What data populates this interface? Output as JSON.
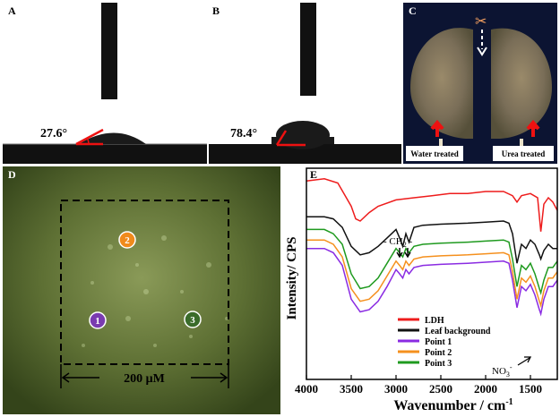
{
  "panels": {
    "a": {
      "label": "A",
      "angle": "27.6°"
    },
    "b": {
      "label": "B",
      "angle": "78.4°"
    },
    "c": {
      "label": "C",
      "left_caption": "Water treated",
      "right_caption": "Urea treated"
    },
    "d": {
      "label": "D",
      "points": [
        "1",
        "2",
        "3"
      ],
      "scale": "200 μM"
    },
    "e": {
      "label": "E",
      "annotation_ch2": "- CH",
      "annotation_ch2_sub": "2",
      "annotation_ch2_tail": " -",
      "annotation_no3": "NO",
      "annotation_no3_sub": "3",
      "annotation_no3_sup": "-"
    }
  },
  "colors": {
    "ldh": "#ee1c1c",
    "leaf": "#111111",
    "point1": "#8a2be2",
    "point2": "#f5901e",
    "point3": "#1f9a1f",
    "point1_marker": "#7a3bb0",
    "point2_marker": "#f08a1c",
    "point3_marker": "#3a6b2a"
  },
  "chart_data": {
    "type": "line",
    "xlabel": "Wavenumber / cm",
    "xlabel_sup": "-1",
    "ylabel": "Intensity/ CPS",
    "xlim": [
      4000,
      1200
    ],
    "x_ticks": [
      4000,
      3500,
      3000,
      2500,
      2000,
      1500
    ],
    "y_ticks": [],
    "legend_position": "bottom-right",
    "series": [
      {
        "name": "LDH",
        "color": "#ee1c1c",
        "x": [
          4000,
          3800,
          3650,
          3500,
          3450,
          3400,
          3300,
          3200,
          3000,
          2800,
          2600,
          2400,
          2200,
          2000,
          1800,
          1700,
          1650,
          1600,
          1500,
          1420,
          1384,
          1350,
          1300,
          1250,
          1200
        ],
        "y": [
          0.94,
          0.95,
          0.93,
          0.82,
          0.76,
          0.75,
          0.79,
          0.82,
          0.85,
          0.86,
          0.87,
          0.88,
          0.88,
          0.89,
          0.89,
          0.87,
          0.84,
          0.87,
          0.88,
          0.86,
          0.7,
          0.83,
          0.86,
          0.84,
          0.8
        ]
      },
      {
        "name": "Leaf background",
        "color": "#111111",
        "x": [
          4000,
          3900,
          3800,
          3700,
          3600,
          3500,
          3400,
          3300,
          3200,
          3100,
          3000,
          2960,
          2925,
          2890,
          2855,
          2800,
          2700,
          2500,
          2200,
          2000,
          1800,
          1740,
          1700,
          1650,
          1600,
          1550,
          1500,
          1450,
          1400,
          1384,
          1350,
          1300,
          1250,
          1200
        ],
        "y": [
          0.77,
          0.77,
          0.77,
          0.76,
          0.72,
          0.63,
          0.59,
          0.6,
          0.63,
          0.67,
          0.71,
          0.67,
          0.63,
          0.69,
          0.65,
          0.72,
          0.73,
          0.735,
          0.74,
          0.745,
          0.75,
          0.74,
          0.69,
          0.55,
          0.64,
          0.62,
          0.66,
          0.64,
          0.59,
          0.57,
          0.61,
          0.64,
          0.62,
          0.62
        ]
      },
      {
        "name": "Point 1",
        "color": "#8a2be2",
        "x": [
          4000,
          3900,
          3800,
          3700,
          3600,
          3500,
          3400,
          3300,
          3200,
          3100,
          3000,
          2960,
          2925,
          2890,
          2855,
          2800,
          2700,
          2500,
          2200,
          2000,
          1800,
          1740,
          1700,
          1650,
          1600,
          1550,
          1500,
          1450,
          1400,
          1384,
          1350,
          1300,
          1250,
          1200
        ],
        "y": [
          0.62,
          0.62,
          0.62,
          0.6,
          0.54,
          0.38,
          0.32,
          0.33,
          0.37,
          0.44,
          0.52,
          0.5,
          0.48,
          0.52,
          0.5,
          0.53,
          0.54,
          0.545,
          0.55,
          0.555,
          0.56,
          0.55,
          0.47,
          0.34,
          0.44,
          0.42,
          0.45,
          0.4,
          0.33,
          0.31,
          0.38,
          0.44,
          0.44,
          0.47
        ]
      },
      {
        "name": "Point 2",
        "color": "#f5901e",
        "x": [
          4000,
          3900,
          3800,
          3700,
          3600,
          3500,
          3400,
          3300,
          3200,
          3100,
          3000,
          2960,
          2925,
          2890,
          2855,
          2800,
          2700,
          2500,
          2200,
          2000,
          1800,
          1740,
          1700,
          1650,
          1600,
          1550,
          1500,
          1450,
          1400,
          1384,
          1350,
          1300,
          1250,
          1200
        ],
        "y": [
          0.66,
          0.66,
          0.66,
          0.64,
          0.58,
          0.43,
          0.37,
          0.38,
          0.42,
          0.49,
          0.56,
          0.54,
          0.52,
          0.56,
          0.54,
          0.57,
          0.58,
          0.585,
          0.59,
          0.595,
          0.6,
          0.59,
          0.51,
          0.38,
          0.48,
          0.46,
          0.49,
          0.44,
          0.37,
          0.35,
          0.42,
          0.48,
          0.48,
          0.51
        ]
      },
      {
        "name": "Point 3",
        "color": "#1f9a1f",
        "x": [
          4000,
          3900,
          3800,
          3700,
          3600,
          3500,
          3400,
          3300,
          3200,
          3100,
          3000,
          2960,
          2925,
          2890,
          2855,
          2800,
          2700,
          2500,
          2200,
          2000,
          1800,
          1740,
          1700,
          1650,
          1600,
          1550,
          1500,
          1450,
          1400,
          1384,
          1350,
          1300,
          1250,
          1200
        ],
        "y": [
          0.71,
          0.71,
          0.71,
          0.69,
          0.64,
          0.5,
          0.43,
          0.44,
          0.48,
          0.55,
          0.62,
          0.6,
          0.58,
          0.62,
          0.6,
          0.63,
          0.64,
          0.645,
          0.65,
          0.655,
          0.66,
          0.65,
          0.57,
          0.44,
          0.54,
          0.52,
          0.55,
          0.5,
          0.43,
          0.41,
          0.47,
          0.53,
          0.53,
          0.56
        ]
      }
    ]
  }
}
